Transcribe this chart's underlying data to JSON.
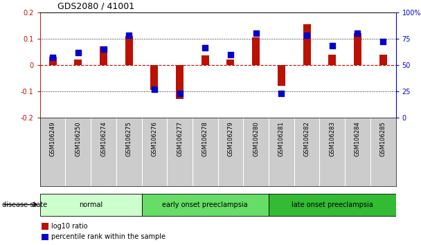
{
  "title": "GDS2080 / 41001",
  "samples": [
    "GSM106249",
    "GSM106250",
    "GSM106274",
    "GSM106275",
    "GSM106276",
    "GSM106277",
    "GSM106278",
    "GSM106279",
    "GSM106280",
    "GSM106281",
    "GSM106282",
    "GSM106283",
    "GSM106284",
    "GSM106285"
  ],
  "log10_ratio": [
    0.03,
    0.02,
    0.07,
    0.11,
    -0.095,
    -0.13,
    0.035,
    0.02,
    0.105,
    -0.08,
    0.155,
    0.04,
    0.12,
    0.04
  ],
  "percentile_rank": [
    57,
    62,
    65,
    78,
    27,
    23,
    66,
    60,
    80,
    23,
    78,
    68,
    80,
    72
  ],
  "groups": [
    {
      "label": "normal",
      "start": 0,
      "end": 4,
      "color": "#ccffcc"
    },
    {
      "label": "early onset preeclampsia",
      "start": 4,
      "end": 9,
      "color": "#66dd66"
    },
    {
      "label": "late onset preeclampsia",
      "start": 9,
      "end": 14,
      "color": "#33bb33"
    }
  ],
  "bar_color": "#bb1100",
  "dot_color": "#0000cc",
  "zero_line_color": "#cc0000",
  "grid_color": "#111111",
  "ylim_left": [
    -0.2,
    0.2
  ],
  "ylim_right": [
    0,
    100
  ],
  "yticks_left": [
    -0.2,
    -0.1,
    0.0,
    0.1,
    0.2
  ],
  "yticks_right": [
    0,
    25,
    50,
    75,
    100
  ],
  "legend_items": [
    "log10 ratio",
    "percentile rank within the sample"
  ],
  "bg_color": "#ffffff",
  "label_area_color": "#cccccc",
  "bar_width": 0.3
}
